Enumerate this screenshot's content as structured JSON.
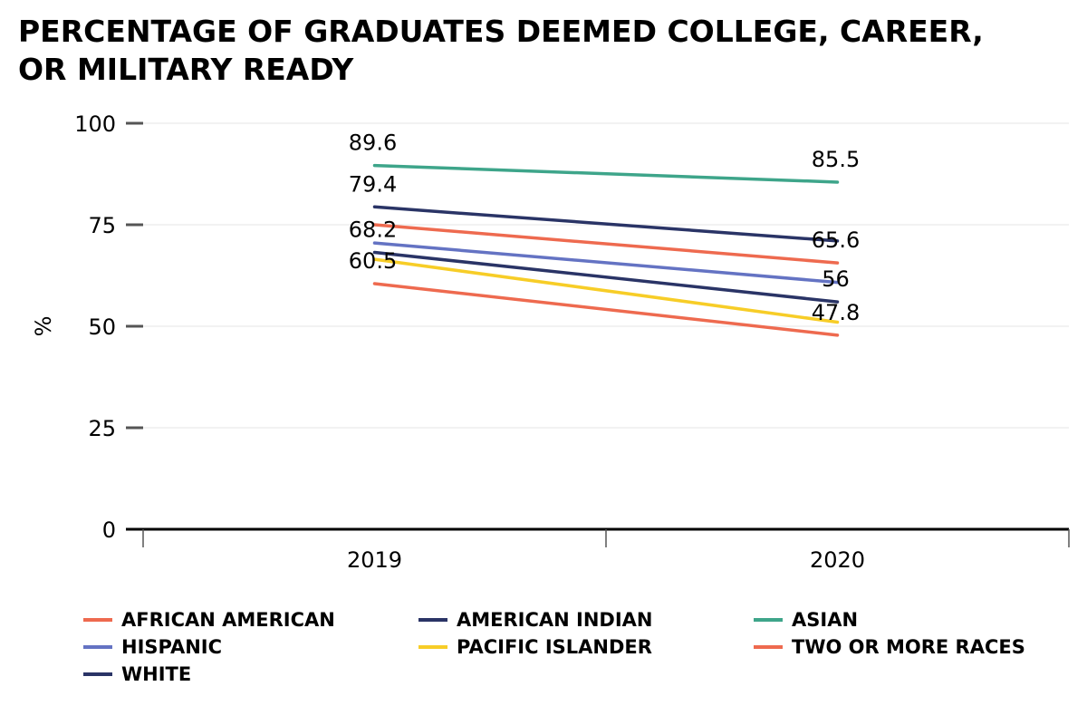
{
  "title": "PERCENTAGE OF GRADUATES DEEMED COLLEGE, CAREER, OR MILITARY READY",
  "chart_data": {
    "type": "line",
    "title": "PERCENTAGE OF GRADUATES DEEMED COLLEGE, CAREER, OR MILITARY READY",
    "xlabel": "",
    "ylabel": "%",
    "x": [
      "2019",
      "2020"
    ],
    "ylim": [
      0,
      100
    ],
    "yticks": [
      0,
      25,
      50,
      75,
      100
    ],
    "grid": true,
    "legend_position": "bottom",
    "series": [
      {
        "name": "AFRICAN AMERICAN",
        "color": "#ee6a4f",
        "values": [
          60.5,
          47.8
        ],
        "labels": [
          "60.5",
          "47.8"
        ]
      },
      {
        "name": "AMERICAN INDIAN",
        "color": "#2a3466",
        "values": [
          68.2,
          56
        ],
        "labels": [
          "68.2",
          "56"
        ]
      },
      {
        "name": "ASIAN",
        "color": "#3ea58a",
        "values": [
          89.6,
          85.5
        ],
        "labels": [
          "89.6",
          "85.5"
        ]
      },
      {
        "name": "HISPANIC",
        "color": "#6473c3",
        "values": [
          70.5,
          60.8
        ],
        "labels": [
          null,
          null
        ]
      },
      {
        "name": "PACIFIC ISLANDER",
        "color": "#f7cd27",
        "values": [
          66.5,
          51
        ],
        "labels": [
          null,
          null
        ]
      },
      {
        "name": "TWO OR MORE RACES",
        "color": "#ee6a4f",
        "values": [
          75,
          65.6
        ],
        "labels": [
          null,
          "65.6"
        ]
      },
      {
        "name": "WHITE",
        "color": "#2a3466",
        "values": [
          79.4,
          71
        ],
        "labels": [
          "79.4",
          null
        ]
      }
    ]
  }
}
